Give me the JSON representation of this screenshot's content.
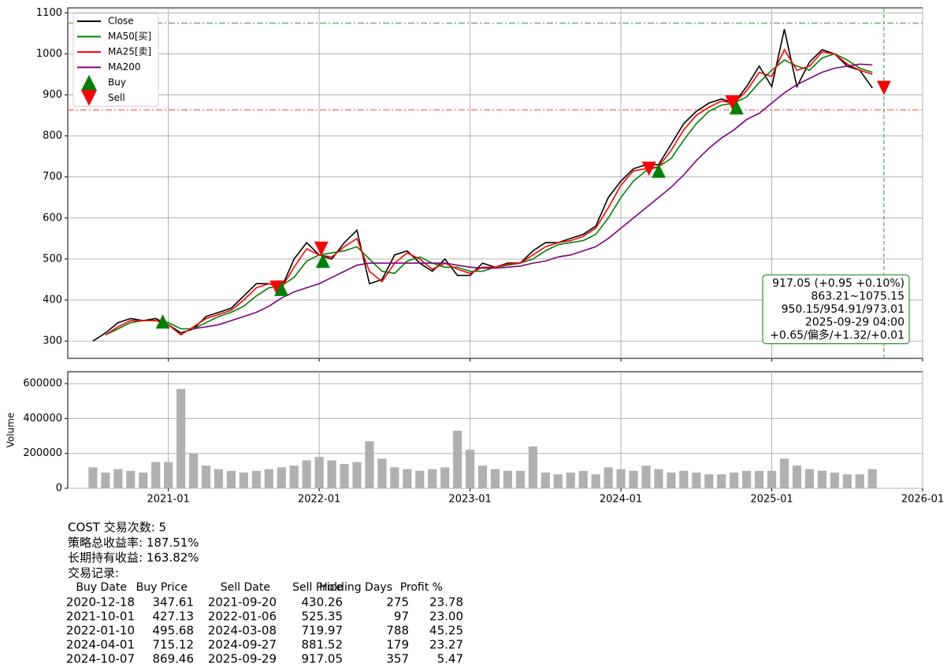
{
  "chart_data": [
    {
      "type": "line",
      "x": [
        "2020-07",
        "2020-08",
        "2020-09",
        "2020-10",
        "2020-11",
        "2020-12",
        "2021-01",
        "2021-02",
        "2021-03",
        "2021-04",
        "2021-05",
        "2021-06",
        "2021-07",
        "2021-08",
        "2021-09",
        "2021-10",
        "2021-11",
        "2021-12",
        "2022-01",
        "2022-02",
        "2022-03",
        "2022-04",
        "2022-05",
        "2022-06",
        "2022-07",
        "2022-08",
        "2022-09",
        "2022-10",
        "2022-11",
        "2022-12",
        "2023-01",
        "2023-02",
        "2023-03",
        "2023-04",
        "2023-05",
        "2023-06",
        "2023-07",
        "2023-08",
        "2023-09",
        "2023-10",
        "2023-11",
        "2023-12",
        "2024-01",
        "2024-02",
        "2024-03",
        "2024-04",
        "2024-05",
        "2024-06",
        "2024-07",
        "2024-08",
        "2024-09",
        "2024-10",
        "2024-11",
        "2024-12",
        "2025-01",
        "2025-02",
        "2025-03",
        "2025-04",
        "2025-05",
        "2025-06",
        "2025-07",
        "2025-08",
        "2025-09"
      ],
      "series": [
        {
          "name": "Close",
          "color": "#000000",
          "values": [
            300,
            320,
            345,
            355,
            350,
            355,
            340,
            320,
            330,
            360,
            370,
            380,
            410,
            440,
            440,
            430,
            500,
            540,
            510,
            500,
            540,
            570,
            440,
            450,
            510,
            520,
            490,
            470,
            500,
            460,
            460,
            490,
            480,
            490,
            490,
            520,
            540,
            540,
            550,
            560,
            580,
            650,
            690,
            720,
            730,
            730,
            780,
            830,
            860,
            880,
            890,
            880,
            920,
            970,
            920,
            1060,
            920,
            980,
            1010,
            1000,
            970,
            960,
            917.05
          ]
        },
        {
          "name": "MA50[买]",
          "color": "#008000",
          "values": [
            null,
            315,
            330,
            345,
            350,
            350,
            345,
            330,
            330,
            345,
            360,
            370,
            385,
            410,
            430,
            435,
            455,
            495,
            510,
            515,
            520,
            530,
            500,
            470,
            465,
            495,
            505,
            490,
            480,
            480,
            470,
            470,
            480,
            485,
            490,
            500,
            520,
            535,
            540,
            545,
            560,
            600,
            650,
            690,
            715,
            725,
            745,
            790,
            830,
            860,
            875,
            880,
            895,
            930,
            960,
            985,
            970,
            960,
            990,
            1000,
            985,
            965,
            954.91
          ]
        },
        {
          "name": "MA25[卖]",
          "color": "#ff0000",
          "values": [
            null,
            315,
            335,
            350,
            350,
            350,
            340,
            315,
            335,
            355,
            365,
            375,
            400,
            430,
            440,
            430,
            480,
            525,
            510,
            505,
            530,
            550,
            470,
            445,
            490,
            515,
            500,
            475,
            490,
            475,
            465,
            480,
            480,
            488,
            490,
            510,
            530,
            540,
            545,
            555,
            575,
            625,
            680,
            715,
            720,
            725,
            765,
            815,
            850,
            870,
            885,
            880,
            910,
            955,
            945,
            1010,
            960,
            970,
            1005,
            1000,
            975,
            960,
            950.15
          ]
        },
        {
          "name": "MA200",
          "color": "#800080",
          "values": [
            null,
            null,
            null,
            null,
            null,
            null,
            null,
            null,
            330,
            335,
            340,
            350,
            360,
            370,
            385,
            405,
            420,
            430,
            440,
            455,
            470,
            485,
            490,
            490,
            490,
            490,
            490,
            490,
            490,
            485,
            480,
            478,
            478,
            480,
            483,
            490,
            495,
            505,
            510,
            520,
            530,
            550,
            575,
            600,
            625,
            650,
            675,
            705,
            740,
            770,
            795,
            815,
            840,
            855,
            880,
            905,
            925,
            940,
            955,
            965,
            970,
            975,
            973.01
          ]
        }
      ],
      "markers": [
        {
          "name": "Buy",
          "color": "#008000",
          "shape": "triangle-up"
        },
        {
          "name": "Sell",
          "color": "#ff0000",
          "shape": "triangle-down"
        }
      ],
      "hlines": [
        {
          "value": 1075.15,
          "color": "#2ca02c"
        },
        {
          "value": 863.21,
          "color": "#ff4040"
        }
      ],
      "xlim": [
        "2020-05",
        "2026-01"
      ],
      "xticks": [
        "2021-01",
        "2022-01",
        "2023-01",
        "2024-01",
        "2025-01",
        "2026-01"
      ],
      "ylim": [
        258,
        1112
      ],
      "yticks": [
        300,
        400,
        500,
        600,
        700,
        800,
        900,
        1000,
        1100
      ],
      "grid": true,
      "legend": "upper left",
      "annotation": {
        "color": "#008000",
        "lines": [
          "917.05 (+0.95 +0.10%)",
          "863.21~1075.15",
          "950.15/954.91/973.01",
          "2025-09-29 04:00",
          "+0.65/偏多/+1.32/+0.01"
        ]
      }
    },
    {
      "type": "bar",
      "x": [
        "2020-07",
        "2020-08",
        "2020-09",
        "2020-10",
        "2020-11",
        "2020-12",
        "2021-01",
        "2021-02",
        "2021-03",
        "2021-04",
        "2021-05",
        "2021-06",
        "2021-07",
        "2021-08",
        "2021-09",
        "2021-10",
        "2021-11",
        "2021-12",
        "2022-01",
        "2022-02",
        "2022-03",
        "2022-04",
        "2022-05",
        "2022-06",
        "2022-07",
        "2022-08",
        "2022-09",
        "2022-10",
        "2022-11",
        "2022-12",
        "2023-01",
        "2023-02",
        "2023-03",
        "2023-04",
        "2023-05",
        "2023-06",
        "2023-07",
        "2023-08",
        "2023-09",
        "2023-10",
        "2023-11",
        "2023-12",
        "2024-01",
        "2024-02",
        "2024-03",
        "2024-04",
        "2024-05",
        "2024-06",
        "2024-07",
        "2024-08",
        "2024-09",
        "2024-10",
        "2024-11",
        "2024-12",
        "2025-01",
        "2025-02",
        "2025-03",
        "2025-04",
        "2025-05",
        "2025-06",
        "2025-07",
        "2025-08",
        "2025-09"
      ],
      "values": [
        120000,
        90000,
        110000,
        100000,
        90000,
        150000,
        150000,
        570000,
        200000,
        130000,
        110000,
        100000,
        90000,
        100000,
        110000,
        120000,
        130000,
        160000,
        180000,
        160000,
        140000,
        150000,
        270000,
        170000,
        120000,
        110000,
        100000,
        110000,
        120000,
        330000,
        220000,
        130000,
        110000,
        100000,
        100000,
        240000,
        90000,
        80000,
        90000,
        100000,
        80000,
        120000,
        110000,
        100000,
        130000,
        110000,
        90000,
        100000,
        90000,
        80000,
        80000,
        90000,
        100000,
        100000,
        100000,
        170000,
        130000,
        110000,
        100000,
        90000,
        80000,
        80000,
        110000
      ],
      "color": "#b0b0b0",
      "ylabel": "Volume",
      "xlim": [
        "2020-05",
        "2026-01"
      ],
      "xticks": [
        "2021-01",
        "2022-01",
        "2023-01",
        "2024-01",
        "2025-01",
        "2026-01"
      ],
      "ylim": [
        0,
        668000
      ],
      "yticks": [
        0,
        200000,
        400000,
        600000
      ],
      "grid": true
    }
  ],
  "summary": [
    "COST 交易次数: 5",
    "策略总收益率: 187.51%",
    "长期持有收益: 163.82%",
    "交易记录:"
  ],
  "trades": {
    "columns": [
      "Buy Date",
      "Buy Price",
      "Sell Date",
      "Sell Price",
      "Holding Days",
      "Profit %"
    ],
    "rows": [
      [
        "2020-12-18",
        "347.61",
        "2021-09-20",
        "430.26",
        "275",
        "23.78"
      ],
      [
        "2021-10-01",
        "427.13",
        "2022-01-06",
        "525.35",
        "97",
        "23.00"
      ],
      [
        "2022-01-10",
        "495.68",
        "2024-03-08",
        "719.97",
        "788",
        "45.25"
      ],
      [
        "2024-04-01",
        "715.12",
        "2024-09-27",
        "881.52",
        "179",
        "23.27"
      ],
      [
        "2024-10-07",
        "869.46",
        "2025-09-29",
        "917.05",
        "357",
        "5.47"
      ]
    ]
  }
}
